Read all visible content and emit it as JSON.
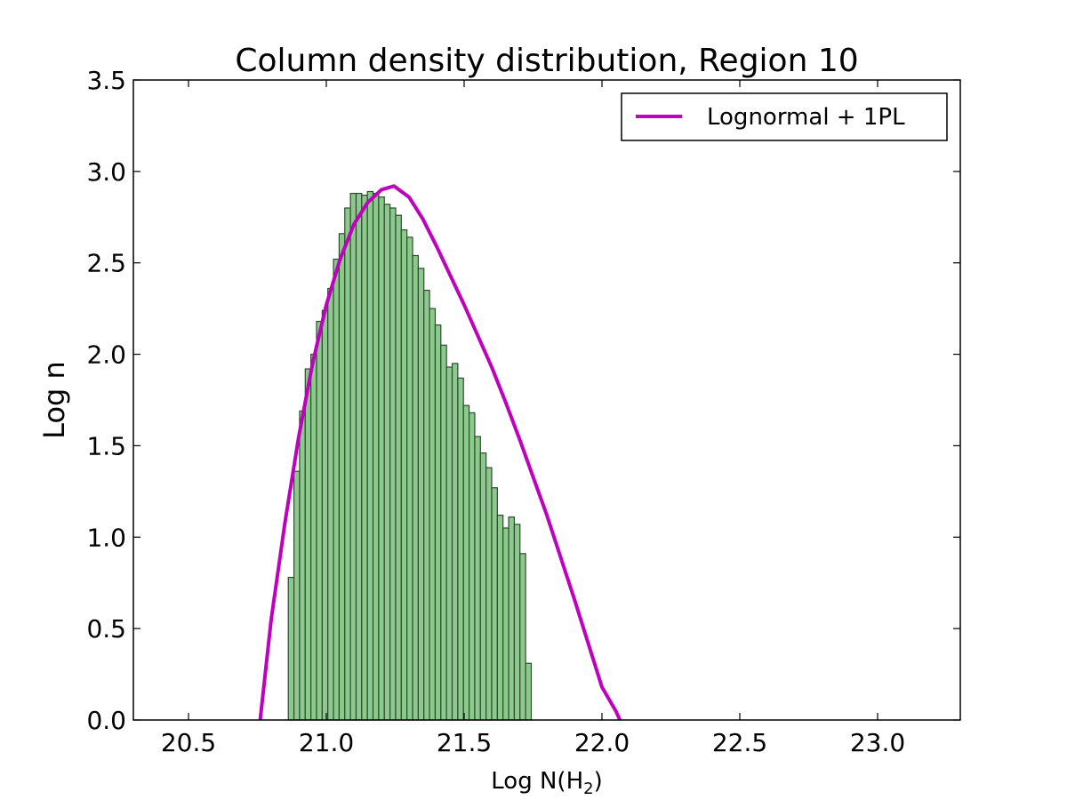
{
  "chart_data": {
    "type": "bar",
    "title": "Column density distribution, Region 10",
    "xlabel_main": "Log N(H",
    "xlabel_sub": "2",
    "xlabel_close": ")",
    "ylabel": "Log n",
    "xlim": [
      20.3,
      23.3
    ],
    "ylim": [
      0.0,
      3.5
    ],
    "xticks": [
      20.5,
      21.0,
      21.5,
      22.0,
      22.5,
      23.0
    ],
    "xtick_labels": [
      "20.5",
      "21.0",
      "21.5",
      "22.0",
      "22.5",
      "23.0"
    ],
    "yticks": [
      0.0,
      0.5,
      1.0,
      1.5,
      2.0,
      2.5,
      3.0,
      3.5
    ],
    "ytick_labels": [
      "0.0",
      "0.5",
      "1.0",
      "1.5",
      "2.0",
      "2.5",
      "3.0",
      "3.5"
    ],
    "histogram": {
      "bin_start": 20.862,
      "bin_width": 0.0205,
      "values": [
        0.78,
        1.36,
        1.69,
        1.92,
        2.0,
        2.18,
        2.24,
        2.36,
        2.52,
        2.66,
        2.8,
        2.88,
        2.88,
        2.87,
        2.89,
        2.88,
        2.86,
        2.82,
        2.8,
        2.76,
        2.68,
        2.64,
        2.54,
        2.47,
        2.35,
        2.25,
        2.16,
        2.05,
        1.93,
        1.95,
        1.87,
        1.72,
        1.68,
        1.55,
        1.46,
        1.38,
        1.27,
        1.12,
        1.05,
        1.11,
        1.07,
        0.91,
        0.31
      ],
      "color": "#8cc98c",
      "edgecolor": "#2f4a2f"
    },
    "fit": {
      "name": "Lognormal + 1PL",
      "color": "#bf00bf",
      "x": [
        20.76,
        20.8,
        20.85,
        20.9,
        20.95,
        21.0,
        21.05,
        21.1,
        21.15,
        21.2,
        21.245,
        21.3,
        21.35,
        21.4,
        21.45,
        21.5,
        21.55,
        21.6,
        21.65,
        21.7,
        21.75,
        21.8,
        21.85,
        21.9,
        21.95,
        22.0,
        22.05,
        22.065
      ],
      "y": [
        0.0,
        0.55,
        1.08,
        1.55,
        1.95,
        2.27,
        2.52,
        2.71,
        2.83,
        2.9,
        2.92,
        2.86,
        2.74,
        2.59,
        2.43,
        2.27,
        2.1,
        1.93,
        1.74,
        1.54,
        1.33,
        1.12,
        0.89,
        0.66,
        0.42,
        0.18,
        0.05,
        0.0
      ]
    },
    "legend": {
      "position": "top-right",
      "entries": [
        "Lognormal + 1PL"
      ]
    },
    "grid": false
  }
}
